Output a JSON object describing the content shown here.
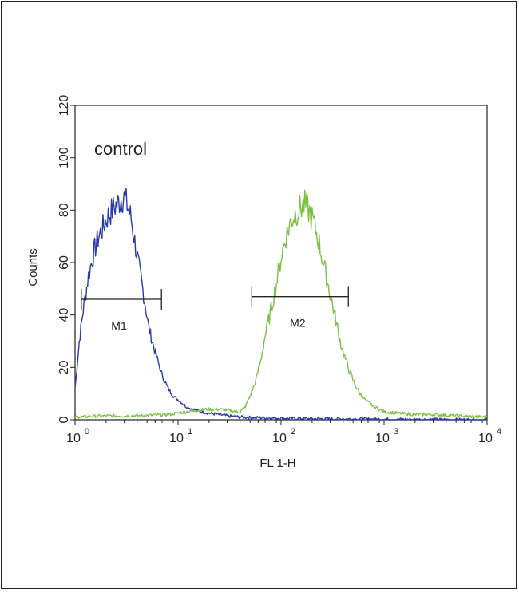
{
  "chart_data": {
    "type": "line",
    "xlabel": "FL 1-H",
    "ylabel": "Counts",
    "xscale": "log",
    "xlim": [
      1,
      10000
    ],
    "ylim": [
      0,
      120
    ],
    "y_ticks": [
      0,
      20,
      40,
      60,
      80,
      100,
      120
    ],
    "x_ticks": [
      {
        "base": "10",
        "exp": "0",
        "value": 1
      },
      {
        "base": "10",
        "exp": "1",
        "value": 10
      },
      {
        "base": "10",
        "exp": "2",
        "value": 100
      },
      {
        "base": "10",
        "exp": "3",
        "value": 1000
      },
      {
        "base": "10",
        "exp": "4",
        "value": 10000
      }
    ],
    "annotation": "control",
    "series": [
      {
        "color": "#2a3aa8",
        "points": [
          [
            1.0,
            12
          ],
          [
            1.1,
            30
          ],
          [
            1.2,
            42
          ],
          [
            1.35,
            55
          ],
          [
            1.5,
            63
          ],
          [
            1.7,
            70
          ],
          [
            1.9,
            74
          ],
          [
            2.1,
            78
          ],
          [
            2.3,
            80
          ],
          [
            2.5,
            82
          ],
          [
            2.8,
            84
          ],
          [
            3.0,
            85
          ],
          [
            3.2,
            82
          ],
          [
            3.5,
            77
          ],
          [
            3.8,
            68
          ],
          [
            4.1,
            60
          ],
          [
            4.4,
            53
          ],
          [
            4.8,
            44
          ],
          [
            5.2,
            35
          ],
          [
            5.7,
            29
          ],
          [
            6.3,
            23
          ],
          [
            7.0,
            17
          ],
          [
            8.0,
            12
          ],
          [
            9.0,
            9
          ],
          [
            10.5,
            7
          ],
          [
            12,
            5
          ],
          [
            14,
            4
          ],
          [
            17,
            3
          ],
          [
            20,
            2.5
          ],
          [
            25,
            2
          ],
          [
            30,
            1.5
          ],
          [
            40,
            1
          ],
          [
            60,
            0.8
          ],
          [
            100,
            0.6
          ],
          [
            200,
            0.4
          ],
          [
            500,
            0.3
          ],
          [
            1000,
            0.2
          ],
          [
            3000,
            0.1
          ],
          [
            10000,
            0
          ]
        ]
      },
      {
        "color": "#7ac143",
        "points": [
          [
            1.0,
            1
          ],
          [
            2,
            1.5
          ],
          [
            4,
            1.5
          ],
          [
            8,
            2
          ],
          [
            12,
            3
          ],
          [
            18,
            4
          ],
          [
            25,
            4
          ],
          [
            32,
            3.5
          ],
          [
            40,
            3
          ],
          [
            45,
            5
          ],
          [
            50,
            9
          ],
          [
            56,
            14
          ],
          [
            63,
            22
          ],
          [
            70,
            32
          ],
          [
            80,
            42
          ],
          [
            90,
            52
          ],
          [
            100,
            62
          ],
          [
            112,
            70
          ],
          [
            125,
            76
          ],
          [
            140,
            79
          ],
          [
            155,
            81
          ],
          [
            170,
            82
          ],
          [
            185,
            80
          ],
          [
            200,
            77
          ],
          [
            230,
            69
          ],
          [
            260,
            59
          ],
          [
            300,
            48
          ],
          [
            340,
            38
          ],
          [
            380,
            29
          ],
          [
            430,
            22
          ],
          [
            500,
            15
          ],
          [
            580,
            10
          ],
          [
            680,
            7
          ],
          [
            800,
            5
          ],
          [
            1000,
            3
          ],
          [
            1400,
            2.5
          ],
          [
            2000,
            2
          ],
          [
            3000,
            2
          ],
          [
            5000,
            1.5
          ],
          [
            10000,
            1
          ]
        ]
      }
    ],
    "markers": [
      {
        "label": "M1",
        "x_start": 1.15,
        "x_end": 6.9,
        "y": 46
      },
      {
        "label": "M2",
        "x_start": 52,
        "x_end": 450,
        "y": 47
      }
    ]
  }
}
